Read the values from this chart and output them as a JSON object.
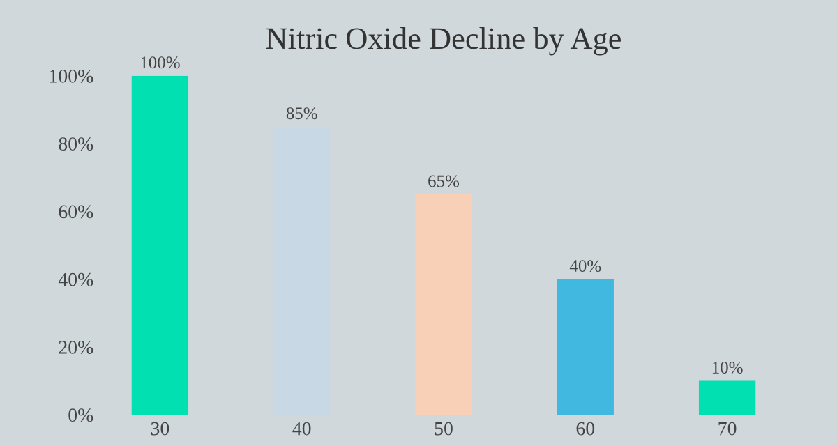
{
  "chart_data": {
    "type": "bar",
    "title": "Nitric Oxide Decline by Age",
    "categories": [
      "30",
      "40",
      "50",
      "60",
      "70"
    ],
    "values": [
      100,
      85,
      65,
      40,
      10
    ],
    "colors": [
      "#00e0b0",
      "#c8d8e4",
      "#f8d0b8",
      "#40b8e0",
      "#00e0b0"
    ],
    "value_labels": [
      "100%",
      "85%",
      "65%",
      "40%",
      "10%"
    ],
    "ylim": [
      0,
      100
    ],
    "yticks": [
      {
        "value": 0,
        "label": "0%"
      },
      {
        "value": 20,
        "label": "20%"
      },
      {
        "value": 40,
        "label": "40%"
      },
      {
        "value": 60,
        "label": "60%"
      },
      {
        "value": 80,
        "label": "80%"
      },
      {
        "value": 100,
        "label": "100%"
      }
    ],
    "grid": false,
    "legend": false
  }
}
